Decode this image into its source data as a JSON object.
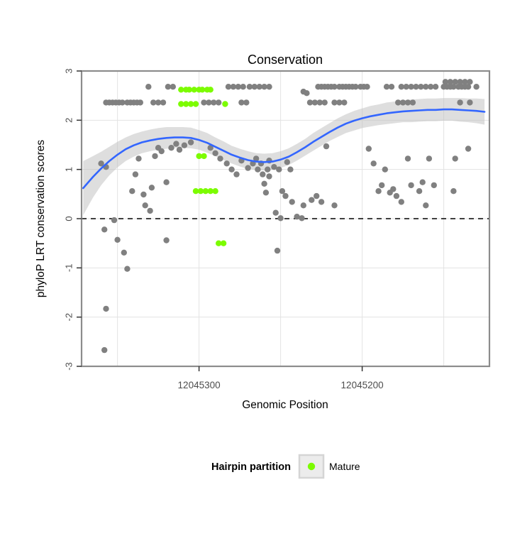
{
  "chart_data": {
    "type": "scatter",
    "title": "Conservation",
    "xlabel": "Genomic Position",
    "ylabel": "phyloP LRT conservation scores",
    "x_domain": [
      12045372,
      12045122
    ],
    "x_axis_reversed": true,
    "ylim": [
      -3,
      3
    ],
    "y_ticks": [
      3,
      2,
      1,
      0,
      -1,
      -2,
      -3
    ],
    "x_ticks": [
      {
        "value": 12045300,
        "label": "12045300"
      },
      {
        "value": 12045200,
        "label": "12045200"
      }
    ],
    "x_gridlines": [
      12045350,
      12045300,
      12045250,
      12045200,
      12045150
    ],
    "grid": true,
    "hline": {
      "y": 0,
      "style": "dashed",
      "color": "#000000"
    },
    "legend": {
      "title": "Hairpin partition",
      "position": "bottom",
      "items": [
        {
          "label": "Mature",
          "color": "#7CFC00"
        }
      ]
    },
    "series": [
      {
        "name": "Other",
        "color": "#808080",
        "points": [
          [
            12045331,
            2.68
          ],
          [
            12045319,
            2.68
          ],
          [
            12045316,
            2.68
          ],
          [
            12045282,
            2.68
          ],
          [
            12045279,
            2.68
          ],
          [
            12045276,
            2.68
          ],
          [
            12045273,
            2.68
          ],
          [
            12045269,
            2.68
          ],
          [
            12045266,
            2.68
          ],
          [
            12045263,
            2.68
          ],
          [
            12045260,
            2.68
          ],
          [
            12045257,
            2.68
          ],
          [
            12045227,
            2.68
          ],
          [
            12045225,
            2.68
          ],
          [
            12045223,
            2.68
          ],
          [
            12045221,
            2.68
          ],
          [
            12045219,
            2.68
          ],
          [
            12045217,
            2.68
          ],
          [
            12045214,
            2.68
          ],
          [
            12045212,
            2.68
          ],
          [
            12045210,
            2.68
          ],
          [
            12045208,
            2.68
          ],
          [
            12045206,
            2.68
          ],
          [
            12045204,
            2.68
          ],
          [
            12045201,
            2.68
          ],
          [
            12045199,
            2.68
          ],
          [
            12045197,
            2.68
          ],
          [
            12045185,
            2.68
          ],
          [
            12045182,
            2.68
          ],
          [
            12045176,
            2.68
          ],
          [
            12045173,
            2.68
          ],
          [
            12045170,
            2.68
          ],
          [
            12045167,
            2.68
          ],
          [
            12045164,
            2.68
          ],
          [
            12045161,
            2.68
          ],
          [
            12045158,
            2.68
          ],
          [
            12045155,
            2.68
          ],
          [
            12045150,
            2.68
          ],
          [
            12045148,
            2.68
          ],
          [
            12045146,
            2.68
          ],
          [
            12045144,
            2.68
          ],
          [
            12045141,
            2.68
          ],
          [
            12045139,
            2.68
          ],
          [
            12045137,
            2.68
          ],
          [
            12045135,
            2.68
          ],
          [
            12045130,
            2.68
          ],
          [
            12045149,
            2.78
          ],
          [
            12045146,
            2.78
          ],
          [
            12045143,
            2.78
          ],
          [
            12045140,
            2.78
          ],
          [
            12045137,
            2.78
          ],
          [
            12045134,
            2.78
          ],
          [
            12045236,
            2.58
          ],
          [
            12045234,
            2.55
          ],
          [
            12045357,
            2.36
          ],
          [
            12045355,
            2.36
          ],
          [
            12045353,
            2.36
          ],
          [
            12045351,
            2.36
          ],
          [
            12045349,
            2.36
          ],
          [
            12045347,
            2.36
          ],
          [
            12045344,
            2.36
          ],
          [
            12045342,
            2.36
          ],
          [
            12045340,
            2.36
          ],
          [
            12045338,
            2.36
          ],
          [
            12045336,
            2.36
          ],
          [
            12045328,
            2.36
          ],
          [
            12045325,
            2.36
          ],
          [
            12045322,
            2.36
          ],
          [
            12045297,
            2.36
          ],
          [
            12045294,
            2.36
          ],
          [
            12045291,
            2.36
          ],
          [
            12045288,
            2.36
          ],
          [
            12045274,
            2.36
          ],
          [
            12045271,
            2.36
          ],
          [
            12045232,
            2.36
          ],
          [
            12045229,
            2.36
          ],
          [
            12045226,
            2.36
          ],
          [
            12045223,
            2.36
          ],
          [
            12045217,
            2.36
          ],
          [
            12045214,
            2.36
          ],
          [
            12045211,
            2.36
          ],
          [
            12045178,
            2.36
          ],
          [
            12045175,
            2.36
          ],
          [
            12045172,
            2.36
          ],
          [
            12045169,
            2.36
          ],
          [
            12045140,
            2.36
          ],
          [
            12045134,
            2.36
          ],
          [
            12045360,
            1.12
          ],
          [
            12045357,
            1.05
          ],
          [
            12045358,
            -0.22
          ],
          [
            12045352,
            -0.03
          ],
          [
            12045350,
            -0.43
          ],
          [
            12045357,
            -1.83
          ],
          [
            12045358,
            -2.67
          ],
          [
            12045346,
            -0.69
          ],
          [
            12045344,
            -1.02
          ],
          [
            12045341,
            0.56
          ],
          [
            12045339,
            0.9
          ],
          [
            12045337,
            1.22
          ],
          [
            12045334,
            0.49
          ],
          [
            12045333,
            0.27
          ],
          [
            12045330,
            0.16
          ],
          [
            12045329,
            0.63
          ],
          [
            12045327,
            1.27
          ],
          [
            12045325,
            1.44
          ],
          [
            12045323,
            1.37
          ],
          [
            12045320,
            -0.44
          ],
          [
            12045320,
            0.74
          ],
          [
            12045317,
            1.44
          ],
          [
            12045314,
            1.52
          ],
          [
            12045312,
            1.4
          ],
          [
            12045309,
            1.49
          ],
          [
            12045305,
            1.55
          ],
          [
            12045293,
            1.44
          ],
          [
            12045290,
            1.33
          ],
          [
            12045287,
            1.22
          ],
          [
            12045283,
            1.12
          ],
          [
            12045280,
            1.0
          ],
          [
            12045277,
            0.9
          ],
          [
            12045274,
            1.18
          ],
          [
            12045270,
            1.03
          ],
          [
            12045267,
            1.12
          ],
          [
            12045265,
            1.22
          ],
          [
            12045264,
            1.0
          ],
          [
            12045262,
            1.12
          ],
          [
            12045261,
            0.9
          ],
          [
            12045260,
            0.71
          ],
          [
            12045259,
            0.53
          ],
          [
            12045258,
            1.0
          ],
          [
            12045257,
            1.18
          ],
          [
            12045257,
            0.86
          ],
          [
            12045254,
            1.05
          ],
          [
            12045253,
            0.12
          ],
          [
            12045252,
            -0.65
          ],
          [
            12045251,
            1.0
          ],
          [
            12045250,
            0.01
          ],
          [
            12045249,
            0.56
          ],
          [
            12045247,
            0.46
          ],
          [
            12045246,
            1.15
          ],
          [
            12045244,
            1.0
          ],
          [
            12045243,
            0.34
          ],
          [
            12045240,
            0.04
          ],
          [
            12045237,
            0.01
          ],
          [
            12045236,
            0.27
          ],
          [
            12045231,
            0.38
          ],
          [
            12045228,
            0.46
          ],
          [
            12045225,
            0.34
          ],
          [
            12045222,
            1.47
          ],
          [
            12045217,
            0.27
          ],
          [
            12045196,
            1.42
          ],
          [
            12045193,
            1.12
          ],
          [
            12045190,
            0.56
          ],
          [
            12045188,
            0.68
          ],
          [
            12045186,
            1.0
          ],
          [
            12045183,
            0.53
          ],
          [
            12045181,
            0.6
          ],
          [
            12045179,
            0.46
          ],
          [
            12045176,
            0.34
          ],
          [
            12045172,
            1.22
          ],
          [
            12045170,
            0.68
          ],
          [
            12045165,
            0.56
          ],
          [
            12045163,
            0.74
          ],
          [
            12045161,
            0.27
          ],
          [
            12045159,
            1.22
          ],
          [
            12045156,
            0.68
          ],
          [
            12045144,
            0.56
          ],
          [
            12045143,
            1.22
          ],
          [
            12045135,
            1.42
          ]
        ]
      },
      {
        "name": "Mature",
        "color": "#7CFC00",
        "points": [
          [
            12045311,
            2.62
          ],
          [
            12045308,
            2.62
          ],
          [
            12045306,
            2.62
          ],
          [
            12045303,
            2.62
          ],
          [
            12045300,
            2.62
          ],
          [
            12045298,
            2.62
          ],
          [
            12045295,
            2.62
          ],
          [
            12045293,
            2.62
          ],
          [
            12045311,
            2.33
          ],
          [
            12045308,
            2.33
          ],
          [
            12045305,
            2.33
          ],
          [
            12045302,
            2.33
          ],
          [
            12045284,
            2.33
          ],
          [
            12045300,
            1.27
          ],
          [
            12045297,
            1.27
          ],
          [
            12045302,
            0.56
          ],
          [
            12045299,
            0.56
          ],
          [
            12045296,
            0.56
          ],
          [
            12045293,
            0.56
          ],
          [
            12045290,
            0.56
          ],
          [
            12045288,
            -0.5
          ],
          [
            12045285,
            -0.5
          ]
        ]
      }
    ],
    "smooth": {
      "color": "#3366FF",
      "band_color": "#bdbdbd",
      "x": [
        12045371,
        12045365,
        12045360,
        12045355,
        12045350,
        12045345,
        12045340,
        12045335,
        12045330,
        12045325,
        12045320,
        12045315,
        12045310,
        12045305,
        12045300,
        12045295,
        12045290,
        12045285,
        12045280,
        12045275,
        12045270,
        12045265,
        12045260,
        12045255,
        12045250,
        12045245,
        12045240,
        12045235,
        12045230,
        12045225,
        12045220,
        12045215,
        12045210,
        12045205,
        12045200,
        12045195,
        12045190,
        12045185,
        12045180,
        12045175,
        12045170,
        12045165,
        12045160,
        12045155,
        12045150,
        12045145,
        12045140,
        12045135,
        12045130,
        12045125
      ],
      "fit": [
        0.62,
        0.85,
        1.02,
        1.17,
        1.3,
        1.41,
        1.49,
        1.55,
        1.59,
        1.62,
        1.64,
        1.65,
        1.65,
        1.64,
        1.6,
        1.54,
        1.46,
        1.38,
        1.3,
        1.24,
        1.19,
        1.16,
        1.15,
        1.16,
        1.2,
        1.26,
        1.35,
        1.45,
        1.56,
        1.66,
        1.76,
        1.85,
        1.93,
        1.99,
        2.04,
        2.08,
        2.11,
        2.14,
        2.16,
        2.18,
        2.19,
        2.2,
        2.21,
        2.21,
        2.22,
        2.22,
        2.21,
        2.2,
        2.19,
        2.17
      ],
      "lower": [
        0.07,
        0.43,
        0.68,
        0.88,
        1.04,
        1.17,
        1.26,
        1.33,
        1.37,
        1.4,
        1.42,
        1.44,
        1.44,
        1.43,
        1.4,
        1.34,
        1.27,
        1.19,
        1.12,
        1.06,
        1.01,
        0.99,
        0.98,
        0.99,
        1.03,
        1.09,
        1.18,
        1.28,
        1.38,
        1.48,
        1.58,
        1.66,
        1.74,
        1.79,
        1.84,
        1.87,
        1.9,
        1.92,
        1.94,
        1.96,
        1.96,
        1.97,
        1.98,
        1.98,
        1.99,
        1.99,
        1.97,
        1.96,
        1.94,
        1.91
      ],
      "upper": [
        1.17,
        1.27,
        1.36,
        1.46,
        1.56,
        1.65,
        1.72,
        1.77,
        1.81,
        1.84,
        1.86,
        1.86,
        1.86,
        1.85,
        1.8,
        1.74,
        1.65,
        1.57,
        1.48,
        1.42,
        1.37,
        1.33,
        1.32,
        1.33,
        1.37,
        1.43,
        1.52,
        1.62,
        1.74,
        1.84,
        1.94,
        2.04,
        2.12,
        2.19,
        2.24,
        2.29,
        2.32,
        2.36,
        2.38,
        2.4,
        2.42,
        2.43,
        2.44,
        2.44,
        2.45,
        2.45,
        2.45,
        2.44,
        2.44,
        2.43
      ]
    },
    "colors": {
      "point_gray": "#808080",
      "mature_green": "#7CFC00",
      "smooth_line": "#3366FF",
      "ribbon": "#bdbdbd",
      "gridline": "#e3e3e3",
      "panel_border": "#8c8c8c",
      "legend_key_fill": "#ececec",
      "legend_key_border": "#d5d5d5"
    }
  }
}
